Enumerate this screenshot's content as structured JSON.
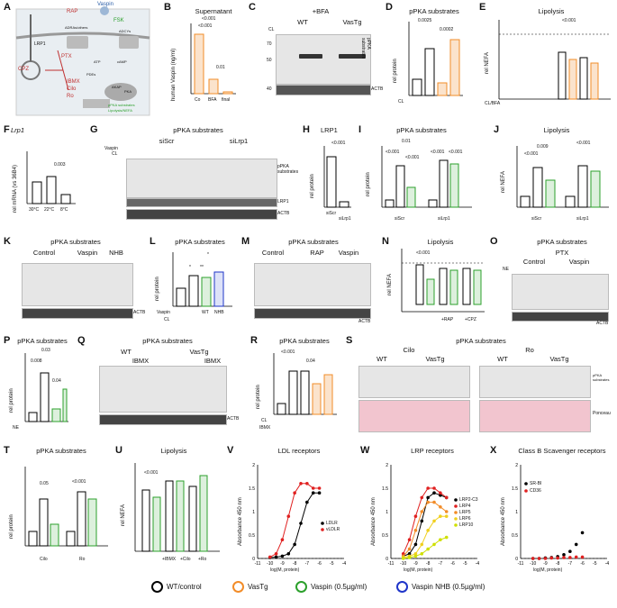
{
  "panels": {
    "A": {
      "label": "A",
      "nodes": [
        "RAP",
        "Vaspin",
        "LRP1",
        "ADRAs/others",
        "PTX",
        "CPZ",
        "FSK",
        "IBMX",
        "Cilo",
        "Ro",
        "PDEs",
        "pPKA substrates",
        "Lipolysis/NEFA",
        "ADCYs",
        "ATP",
        "cAMP",
        "AKAP",
        "PKA"
      ]
    },
    "B": {
      "label": "B",
      "title": "Supernatant",
      "ylabel": "human Vaspin (ng/ml)",
      "cats": [
        "Co",
        "BFA",
        "final"
      ],
      "sig": [
        "<0.001",
        "<0.001",
        "0.01"
      ]
    },
    "C": {
      "label": "C",
      "title": "+BFA",
      "groups": [
        "WT",
        "VasTg"
      ],
      "row_cl": "CL",
      "right": "pPKA substrates",
      "bottom": "ACTB",
      "kda": [
        "70",
        "50",
        "40"
      ]
    },
    "D": {
      "label": "D",
      "title": "pPKA substrates",
      "ylabel": "rel protein",
      "sig": [
        "0.0025",
        "0.0002"
      ],
      "xrow": "CL"
    },
    "E": {
      "label": "E",
      "title": "Lipolysis",
      "ylabel": "rel NEFA",
      "sig": "<0.001",
      "xrow": "CL/BFA",
      "cats": [
        "-/-",
        "-/+",
        "-/+",
        "+/-",
        "+/+",
        "+/+",
        "+/+"
      ]
    },
    "F": {
      "label": "F",
      "title": "Lrp1",
      "ylabel": "rel mRNA (vs 36B4)",
      "cats": [
        "30°C",
        "22°C",
        "8°C"
      ],
      "sig": "0.003"
    },
    "G": {
      "label": "G",
      "title": "pPKA substrates",
      "groups": [
        "siScr",
        "siLrp1"
      ],
      "rows": [
        "Vaspin",
        "CL"
      ],
      "right": "pPKA substrates",
      "r2": "LRP1",
      "bottom": "ACTB"
    },
    "H": {
      "label": "H",
      "title": "LRP1",
      "ylabel": "rel protein",
      "sig": "<0.001",
      "cats": [
        "siScr",
        "siLrp1"
      ]
    },
    "I": {
      "label": "I",
      "title": "pPKA substrates",
      "ylabel": "rel protein",
      "sig": [
        "0.01",
        "<0.001",
        "<0.001",
        "<0.001",
        "<0.001"
      ],
      "groups": [
        "siScr",
        "siLrp1"
      ]
    },
    "J": {
      "label": "J",
      "title": "Lipolysis",
      "ylabel": "rel NEFA",
      "sig": [
        "0.009",
        "<0.001",
        "<0.001"
      ],
      "groups": [
        "siScr",
        "siLrp1"
      ]
    },
    "K": {
      "label": "K",
      "title": "pPKA substrates",
      "groups": [
        "Control",
        "Vaspin",
        "NHB"
      ],
      "bottom": "ACTB"
    },
    "L": {
      "label": "L",
      "title": "pPKA substrates",
      "ylabel": "rel protein",
      "sig": [
        "*",
        "**",
        "*"
      ],
      "rows": [
        "Vaspin",
        "CL"
      ],
      "cats": [
        "WT",
        "NHB"
      ]
    },
    "M": {
      "label": "M",
      "title": "pPKA substrates",
      "groups": [
        "Control",
        "RAP",
        "Vaspin"
      ],
      "bottom": "ACTB"
    },
    "N": {
      "label": "N",
      "title": "Lipolysis",
      "ylabel": "rel NEFA",
      "sig": "<0.001",
      "cats": [
        "+RAP",
        "+CPZ"
      ]
    },
    "O": {
      "label": "O",
      "title": "pPKA substrates",
      "top": "PTX",
      "groups": [
        "Control",
        "Vaspin"
      ],
      "row": "NE",
      "bottom": "ACTB"
    },
    "P": {
      "label": "P",
      "title": "pPKA substrates",
      "ylabel": "rel protein",
      "sig": [
        "0.008",
        "0.03",
        "0.04"
      ],
      "xrow": "NE"
    },
    "Q": {
      "label": "Q",
      "title": "pPKA substrates",
      "groups": [
        "WT",
        "VasTg"
      ],
      "sub": [
        "IBMX",
        "IBMX"
      ],
      "bottom": "ACTB"
    },
    "R": {
      "label": "R",
      "title": "pPKA substrates",
      "ylabel": "rel protein",
      "sig": [
        "<0.001",
        "0.04"
      ],
      "rows": [
        "CL",
        "IBMX"
      ]
    },
    "S": {
      "label": "S",
      "title": "pPKA substrates",
      "groups": [
        "Cilo",
        "Ro"
      ],
      "sub": [
        "WT",
        "VasTg",
        "WT",
        "VasTg"
      ],
      "right": "pPKA substrates",
      "bottom": "Ponceau"
    },
    "T": {
      "label": "T",
      "title": "pPKA substrates",
      "ylabel": "rel protein",
      "sig": [
        "0.05",
        "<0.001"
      ],
      "groups": [
        "Cilo",
        "Ro"
      ]
    },
    "U": {
      "label": "U",
      "title": "Lipolysis",
      "ylabel": "rel NEFA",
      "sig": "<0.001",
      "cats": [
        "+IBMX",
        "+Cilo",
        "+Ro"
      ]
    },
    "V": {
      "label": "V",
      "title": "LDL receptors",
      "ylabel": "Absorbance 450 nm",
      "xlabel": "log(M, protein)",
      "legend": [
        "LDLR",
        "vLDLR"
      ]
    },
    "W": {
      "label": "W",
      "title": "LRP receptors",
      "ylabel": "Absorbance 450 nm",
      "xlabel": "log(M, protein)",
      "legend": [
        "LRP2-C3",
        "LRP4",
        "LRP5",
        "LRP6",
        "LRP10"
      ]
    },
    "X": {
      "label": "X",
      "title": "Class B Scavenger receptors",
      "ylabel": "Absorbance 450 nm",
      "xlabel": "log(M, protein)",
      "legend": [
        "SR-BI",
        "CD36"
      ]
    }
  },
  "legend": [
    {
      "label": "WT/control",
      "color": "#000000"
    },
    {
      "label": "VasTg",
      "color": "#f28c28"
    },
    {
      "label": "Vaspin (0.5µg/ml)",
      "color": "#2ca02c"
    },
    {
      "label": "Vaspin NHB (0.5µg/ml)",
      "color": "#1f35c9"
    }
  ],
  "chart_data": [
    {
      "type": "line",
      "title": "LDL receptors",
      "xlabel": "log(M, protein)",
      "ylabel": "Absorbance 450 nm",
      "xlim": [
        -11,
        -4
      ],
      "ylim": [
        0,
        2.0
      ],
      "series": [
        {
          "name": "LDLR",
          "color": "#000000",
          "x": [
            -10,
            -9.5,
            -9,
            -8.5,
            -8,
            -7.5,
            -7,
            -6.5,
            -6
          ],
          "y": [
            0.02,
            0.03,
            0.05,
            0.1,
            0.3,
            0.75,
            1.2,
            1.4,
            1.4
          ]
        },
        {
          "name": "vLDLR",
          "color": "#e02020",
          "x": [
            -10,
            -9.5,
            -9,
            -8.5,
            -8,
            -7.5,
            -7,
            -6.5,
            -6
          ],
          "y": [
            0.03,
            0.1,
            0.4,
            0.9,
            1.4,
            1.6,
            1.6,
            1.5,
            1.5
          ]
        }
      ]
    },
    {
      "type": "line",
      "title": "LRP receptors",
      "xlabel": "log(M, protein)",
      "ylabel": "Absorbance 450 nm",
      "xlim": [
        -11,
        -4
      ],
      "ylim": [
        0,
        2.0
      ],
      "series": [
        {
          "name": "LRP2-C3",
          "color": "#000000",
          "x": [
            -10,
            -9.5,
            -9,
            -8.5,
            -8,
            -7.5,
            -7,
            -6.5
          ],
          "y": [
            0.05,
            0.1,
            0.3,
            0.8,
            1.3,
            1.4,
            1.35,
            1.3
          ]
        },
        {
          "name": "LRP4",
          "color": "#e02020",
          "x": [
            -10,
            -9.5,
            -9,
            -8.5,
            -8,
            -7.5,
            -7,
            -6.5
          ],
          "y": [
            0.1,
            0.4,
            0.9,
            1.3,
            1.5,
            1.5,
            1.4,
            1.3
          ]
        },
        {
          "name": "LRP5",
          "color": "#f28c28",
          "x": [
            -10,
            -9.5,
            -9,
            -8.5,
            -8,
            -7.5,
            -7,
            -6.5
          ],
          "y": [
            0.05,
            0.2,
            0.6,
            1.0,
            1.2,
            1.2,
            1.1,
            1.0
          ]
        },
        {
          "name": "LRP6",
          "color": "#f0d020",
          "x": [
            -10,
            -9.5,
            -9,
            -8.5,
            -8,
            -7.5,
            -7,
            -6.5
          ],
          "y": [
            0.02,
            0.05,
            0.1,
            0.3,
            0.6,
            0.8,
            0.9,
            0.9
          ]
        },
        {
          "name": "LRP10",
          "color": "#cfe000",
          "x": [
            -10,
            -9.5,
            -9,
            -8.5,
            -8,
            -7.5,
            -7,
            -6.5
          ],
          "y": [
            0.0,
            0.02,
            0.05,
            0.1,
            0.2,
            0.3,
            0.4,
            0.45
          ]
        }
      ]
    },
    {
      "type": "scatter",
      "title": "Class B Scavenger receptors",
      "xlabel": "log(M, protein)",
      "ylabel": "Absorbance 450 nm",
      "xlim": [
        -11,
        -4
      ],
      "ylim": [
        0,
        2.0
      ],
      "series": [
        {
          "name": "SR-BI",
          "color": "#000000",
          "x": [
            -10,
            -9.5,
            -9,
            -8.5,
            -8,
            -7.5,
            -7,
            -6.5,
            -6
          ],
          "y": [
            0.0,
            0.0,
            0.01,
            0.02,
            0.04,
            0.08,
            0.15,
            0.3,
            0.55
          ]
        },
        {
          "name": "CD36",
          "color": "#e02020",
          "x": [
            -10,
            -9.5,
            -9,
            -8.5,
            -8,
            -7.5,
            -7,
            -6.5,
            -6
          ],
          "y": [
            0.0,
            0.0,
            0.0,
            0.01,
            0.01,
            0.02,
            0.02,
            0.03,
            0.03
          ]
        }
      ]
    }
  ]
}
